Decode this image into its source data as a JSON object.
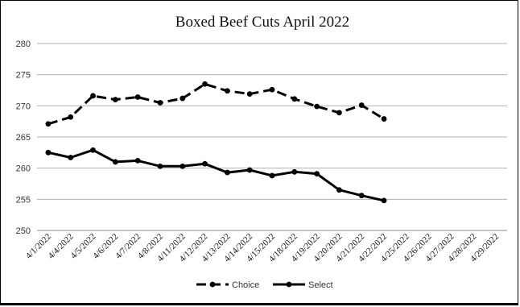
{
  "chart_data": {
    "type": "line",
    "title": "Boxed Beef Cuts April 2022",
    "xlabel": "",
    "ylabel": "",
    "categories": [
      "4/1/2022",
      "4/4/2022",
      "4/5/2022",
      "4/6/2022",
      "4/7/2022",
      "4/8/2022",
      "4/11/2022",
      "4/12/2022",
      "4/13/2022",
      "4/14/2022",
      "4/15/2022",
      "4/18/2022",
      "4/19/2022",
      "4/20/2022",
      "4/21/2022",
      "4/22/2022",
      "4/25/2022",
      "4/26/2022",
      "4/27/2022",
      "4/28/2022",
      "4/29/2022"
    ],
    "ylim": [
      250,
      280
    ],
    "yticks": [
      250,
      255,
      260,
      265,
      270,
      275,
      280
    ],
    "grid": "horizontal",
    "legend": "bottom",
    "series": [
      {
        "name": "Choice",
        "style": "dashed",
        "color": "#000000",
        "values": [
          267.1,
          268.2,
          271.6,
          271.0,
          271.4,
          270.5,
          271.2,
          273.5,
          272.4,
          271.9,
          272.6,
          271.1,
          269.9,
          268.9,
          270.1,
          267.9,
          null,
          null,
          null,
          null,
          null
        ]
      },
      {
        "name": "Select",
        "style": "solid",
        "color": "#000000",
        "values": [
          262.5,
          261.7,
          262.9,
          261.0,
          261.2,
          260.3,
          260.3,
          260.7,
          259.3,
          259.7,
          258.8,
          259.4,
          259.1,
          256.5,
          255.6,
          254.8,
          null,
          null,
          null,
          null,
          null
        ]
      }
    ]
  }
}
